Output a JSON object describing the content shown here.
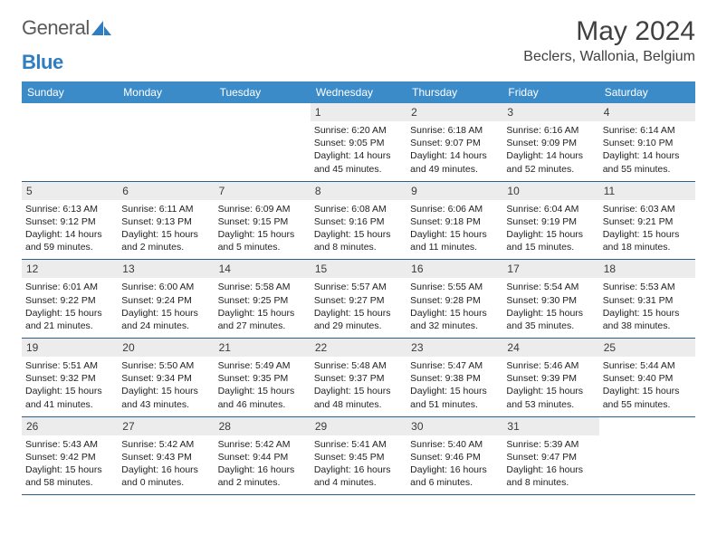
{
  "logo": {
    "text1": "General",
    "text2": "Blue"
  },
  "title": "May 2024",
  "location": "Beclers, Wallonia, Belgium",
  "colors": {
    "header_bg": "#3b8bc9",
    "header_text": "#ffffff",
    "daynum_bg": "#ececec",
    "row_border": "#2e5e8a",
    "logo_gray": "#5a5a5a",
    "logo_blue": "#2f7ec2",
    "body_text": "#222222"
  },
  "dayNames": [
    "Sunday",
    "Monday",
    "Tuesday",
    "Wednesday",
    "Thursday",
    "Friday",
    "Saturday"
  ],
  "startDayOfWeek": 3,
  "daysInMonth": 31,
  "days": {
    "1": {
      "sunrise": "6:20 AM",
      "sunset": "9:05 PM",
      "dl_h": 14,
      "dl_m": 45
    },
    "2": {
      "sunrise": "6:18 AM",
      "sunset": "9:07 PM",
      "dl_h": 14,
      "dl_m": 49
    },
    "3": {
      "sunrise": "6:16 AM",
      "sunset": "9:09 PM",
      "dl_h": 14,
      "dl_m": 52
    },
    "4": {
      "sunrise": "6:14 AM",
      "sunset": "9:10 PM",
      "dl_h": 14,
      "dl_m": 55
    },
    "5": {
      "sunrise": "6:13 AM",
      "sunset": "9:12 PM",
      "dl_h": 14,
      "dl_m": 59
    },
    "6": {
      "sunrise": "6:11 AM",
      "sunset": "9:13 PM",
      "dl_h": 15,
      "dl_m": 2
    },
    "7": {
      "sunrise": "6:09 AM",
      "sunset": "9:15 PM",
      "dl_h": 15,
      "dl_m": 5
    },
    "8": {
      "sunrise": "6:08 AM",
      "sunset": "9:16 PM",
      "dl_h": 15,
      "dl_m": 8
    },
    "9": {
      "sunrise": "6:06 AM",
      "sunset": "9:18 PM",
      "dl_h": 15,
      "dl_m": 11
    },
    "10": {
      "sunrise": "6:04 AM",
      "sunset": "9:19 PM",
      "dl_h": 15,
      "dl_m": 15
    },
    "11": {
      "sunrise": "6:03 AM",
      "sunset": "9:21 PM",
      "dl_h": 15,
      "dl_m": 18
    },
    "12": {
      "sunrise": "6:01 AM",
      "sunset": "9:22 PM",
      "dl_h": 15,
      "dl_m": 21
    },
    "13": {
      "sunrise": "6:00 AM",
      "sunset": "9:24 PM",
      "dl_h": 15,
      "dl_m": 24
    },
    "14": {
      "sunrise": "5:58 AM",
      "sunset": "9:25 PM",
      "dl_h": 15,
      "dl_m": 27
    },
    "15": {
      "sunrise": "5:57 AM",
      "sunset": "9:27 PM",
      "dl_h": 15,
      "dl_m": 29
    },
    "16": {
      "sunrise": "5:55 AM",
      "sunset": "9:28 PM",
      "dl_h": 15,
      "dl_m": 32
    },
    "17": {
      "sunrise": "5:54 AM",
      "sunset": "9:30 PM",
      "dl_h": 15,
      "dl_m": 35
    },
    "18": {
      "sunrise": "5:53 AM",
      "sunset": "9:31 PM",
      "dl_h": 15,
      "dl_m": 38
    },
    "19": {
      "sunrise": "5:51 AM",
      "sunset": "9:32 PM",
      "dl_h": 15,
      "dl_m": 41
    },
    "20": {
      "sunrise": "5:50 AM",
      "sunset": "9:34 PM",
      "dl_h": 15,
      "dl_m": 43
    },
    "21": {
      "sunrise": "5:49 AM",
      "sunset": "9:35 PM",
      "dl_h": 15,
      "dl_m": 46
    },
    "22": {
      "sunrise": "5:48 AM",
      "sunset": "9:37 PM",
      "dl_h": 15,
      "dl_m": 48
    },
    "23": {
      "sunrise": "5:47 AM",
      "sunset": "9:38 PM",
      "dl_h": 15,
      "dl_m": 51
    },
    "24": {
      "sunrise": "5:46 AM",
      "sunset": "9:39 PM",
      "dl_h": 15,
      "dl_m": 53
    },
    "25": {
      "sunrise": "5:44 AM",
      "sunset": "9:40 PM",
      "dl_h": 15,
      "dl_m": 55
    },
    "26": {
      "sunrise": "5:43 AM",
      "sunset": "9:42 PM",
      "dl_h": 15,
      "dl_m": 58
    },
    "27": {
      "sunrise": "5:42 AM",
      "sunset": "9:43 PM",
      "dl_h": 16,
      "dl_m": 0
    },
    "28": {
      "sunrise": "5:42 AM",
      "sunset": "9:44 PM",
      "dl_h": 16,
      "dl_m": 2
    },
    "29": {
      "sunrise": "5:41 AM",
      "sunset": "9:45 PM",
      "dl_h": 16,
      "dl_m": 4
    },
    "30": {
      "sunrise": "5:40 AM",
      "sunset": "9:46 PM",
      "dl_h": 16,
      "dl_m": 6
    },
    "31": {
      "sunrise": "5:39 AM",
      "sunset": "9:47 PM",
      "dl_h": 16,
      "dl_m": 8
    }
  },
  "labels": {
    "sunrise": "Sunrise:",
    "sunset": "Sunset:",
    "daylight": "Daylight:",
    "hours": "hours",
    "and": "and",
    "minutes": "minutes."
  }
}
